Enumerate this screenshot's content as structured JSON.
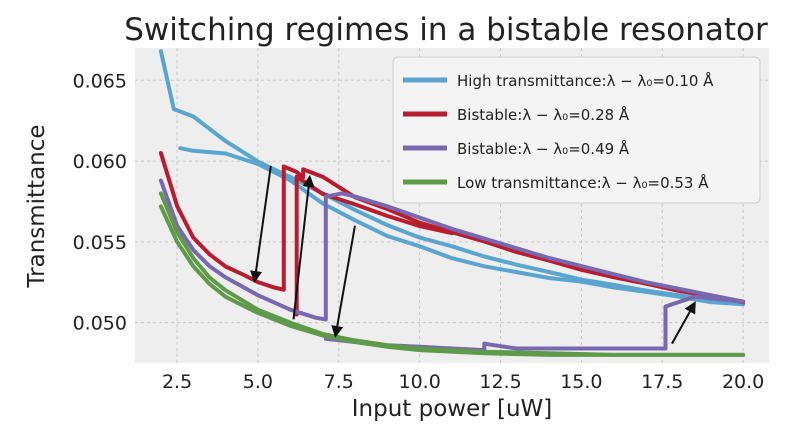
{
  "chart_data": {
    "type": "line",
    "title": "Switching regimes in a bistable resonator",
    "xlabel": "Input power [uW]",
    "ylabel": "Transmittance",
    "xlim": [
      1.2,
      20.8
    ],
    "ylim": [
      0.0475,
      0.067
    ],
    "xticks": [
      "2.5",
      "5.0",
      "7.5",
      "10.0",
      "12.5",
      "15.0",
      "17.5",
      "20.0"
    ],
    "yticks": [
      "0.050",
      "0.055",
      "0.060",
      "0.065"
    ],
    "grid": true,
    "legend_position": "top-right",
    "series": [
      {
        "name": "High transmittance:λ − λ₀=0.10 Å",
        "color": "#5aa5d0",
        "branches": [
          {
            "x": [
              2.0,
              2.4,
              3.0,
              4.0,
              5.0,
              6.0,
              7.0,
              8.0,
              9.0,
              10.0,
              11.0,
              12.0,
              13.0,
              14.0,
              15.0,
              16.0,
              17.0,
              18.0,
              19.0,
              20.0
            ],
            "y": [
              0.0668,
              0.0632,
              0.0628,
              0.0612,
              0.06,
              0.059,
              0.058,
              0.057,
              0.056,
              0.0553,
              0.0547,
              0.0541,
              0.0536,
              0.0531,
              0.0527,
              0.0523,
              0.052,
              0.0517,
              0.0514,
              0.0512
            ]
          },
          {
            "x": [
              2.6,
              3.0,
              4.0,
              5.0,
              6.0,
              7.0,
              8.0,
              9.0,
              10.0,
              11.0,
              12.0,
              13.0,
              14.0,
              15.0,
              16.0,
              17.0,
              18.0,
              19.0,
              20.0
            ],
            "y": [
              0.0608,
              0.0606,
              0.0605,
              0.0598,
              0.0588,
              0.0574,
              0.0563,
              0.0554,
              0.0547,
              0.054,
              0.0535,
              0.0531,
              0.0528,
              0.0525,
              0.0522,
              0.0519,
              0.0516,
              0.0513,
              0.0511
            ]
          }
        ]
      },
      {
        "name": "Bistable:λ − λ₀=0.28 Å",
        "color": "#b81c2e",
        "branches": [
          {
            "x": [
              2.0,
              2.5,
              3.0,
              3.5,
              4.0,
              4.5,
              5.0,
              5.5,
              5.8,
              5.8,
              6.2,
              6.4,
              6.4,
              7.0,
              8.0,
              9.0,
              10.0,
              11.0,
              12.0,
              13.0,
              14.0,
              15.0,
              16.0,
              17.0,
              18.0,
              19.0,
              20.0
            ],
            "y": [
              0.0605,
              0.0572,
              0.0553,
              0.0542,
              0.0535,
              0.053,
              0.0525,
              0.0522,
              0.052,
              0.0597,
              0.0593,
              0.059,
              0.0595,
              0.059,
              0.0578,
              0.057,
              0.0562,
              0.0556,
              0.055,
              0.0544,
              0.0538,
              0.0533,
              0.0528,
              0.0524,
              0.052,
              0.0516,
              0.0513
            ]
          },
          {
            "x": [
              6.2,
              6.2,
              7.0,
              8.0,
              9.0,
              10.0,
              11.0
            ],
            "y": [
              0.0505,
              0.059,
              0.058,
              0.0573,
              0.0566,
              0.056,
              0.0555
            ]
          }
        ]
      },
      {
        "name": "Bistable:λ − λ₀=0.49 Å",
        "color": "#7868b0",
        "branches": [
          {
            "x": [
              2.0,
              2.5,
              3.0,
              3.5,
              4.0,
              5.0,
              6.0,
              6.8,
              7.1,
              7.1,
              7.6,
              8.0,
              9.0,
              10.0,
              11.0,
              12.0,
              13.0,
              14.0,
              15.0,
              16.0,
              17.0,
              18.0,
              19.0,
              20.0
            ],
            "y": [
              0.0588,
              0.056,
              0.0545,
              0.0535,
              0.0528,
              0.0517,
              0.0508,
              0.0503,
              0.0502,
              0.0578,
              0.058,
              0.0578,
              0.0572,
              0.0565,
              0.0558,
              0.0552,
              0.0546,
              0.054,
              0.0535,
              0.053,
              0.0525,
              0.0521,
              0.0517,
              0.0513
            ]
          },
          {
            "x": [
              7.1,
              8.0,
              9.0,
              10.0,
              11.0,
              12.0,
              12.0,
              12.3,
              13.0,
              14.0,
              15.0,
              16.0,
              17.0,
              17.6,
              17.6,
              18.5,
              19.0,
              20.0
            ],
            "y": [
              0.049,
              0.0488,
              0.0486,
              0.0485,
              0.0484,
              0.0483,
              0.0487,
              0.0486,
              0.0484,
              0.0484,
              0.0484,
              0.0484,
              0.0484,
              0.0484,
              0.051,
              0.0516,
              0.0515,
              0.0513
            ]
          }
        ]
      },
      {
        "name": "Low transmittance:λ − λ₀=0.53 Å",
        "color": "#5f9a4a",
        "branches": [
          {
            "x": [
              2.0,
              2.5,
              3.0,
              3.5,
              4.0,
              5.0,
              6.0,
              7.0,
              8.0,
              9.0,
              10.0,
              12.0,
              14.0,
              16.0,
              18.0,
              20.0
            ],
            "y": [
              0.058,
              0.0556,
              0.054,
              0.0528,
              0.052,
              0.0508,
              0.05,
              0.0493,
              0.0489,
              0.0486,
              0.0484,
              0.0482,
              0.0481,
              0.048,
              0.048,
              0.048
            ]
          },
          {
            "x": [
              2.0,
              2.5,
              3.0,
              3.5,
              4.0,
              5.0,
              6.0,
              7.0,
              8.0,
              9.0,
              10.0,
              12.0,
              14.0,
              16.0,
              18.0,
              20.0
            ],
            "y": [
              0.0572,
              0.055,
              0.0535,
              0.0524,
              0.0516,
              0.0506,
              0.0498,
              0.0492,
              0.0488,
              0.0485,
              0.0483,
              0.0481,
              0.048,
              0.048,
              0.048,
              0.048
            ]
          }
        ]
      }
    ],
    "annotations": [
      {
        "type": "arrow",
        "from": [
          5.4,
          0.0597
        ],
        "to": [
          4.9,
          0.0526
        ]
      },
      {
        "type": "arrow",
        "from": [
          6.1,
          0.0502
        ],
        "to": [
          6.6,
          0.059
        ]
      },
      {
        "type": "arrow",
        "from": [
          8.0,
          0.056
        ],
        "to": [
          7.4,
          0.0492
        ]
      },
      {
        "type": "arrow",
        "from": [
          17.8,
          0.0487
        ],
        "to": [
          18.5,
          0.0512
        ]
      }
    ]
  }
}
